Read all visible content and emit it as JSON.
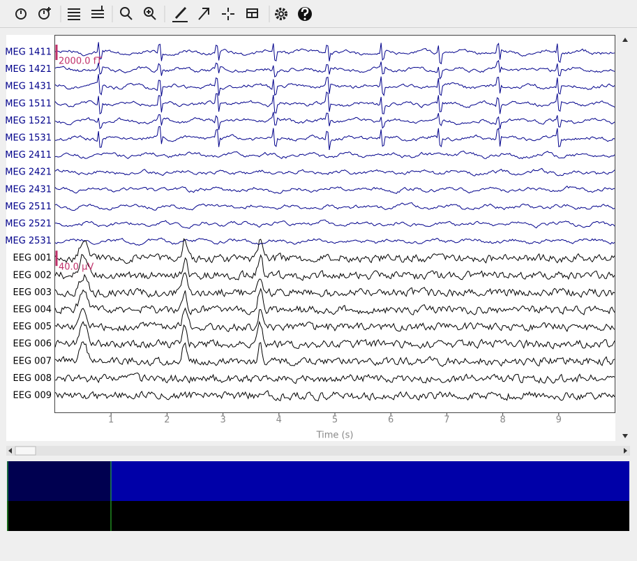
{
  "plot": {
    "channels": [
      "MEG 1411",
      "MEG 1421",
      "MEG 1431",
      "MEG 1511",
      "MEG 1521",
      "MEG 1531",
      "MEG 2411",
      "MEG 2421",
      "MEG 2431",
      "MEG 2511",
      "MEG 2521",
      "MEG 2531",
      "EEG 001",
      "EEG 002",
      "EEG 003",
      "EEG 004",
      "EEG 005",
      "EEG 006",
      "EEG 007",
      "EEG 008",
      "EEG 009"
    ],
    "scale_labels": [
      "2000.0 fT",
      "40.0 µV"
    ],
    "xlabel": "Time (s)",
    "xlim": [
      0,
      10
    ],
    "xticks": [
      1,
      2,
      3,
      4,
      5,
      6,
      7,
      8,
      9
    ]
  }
}
